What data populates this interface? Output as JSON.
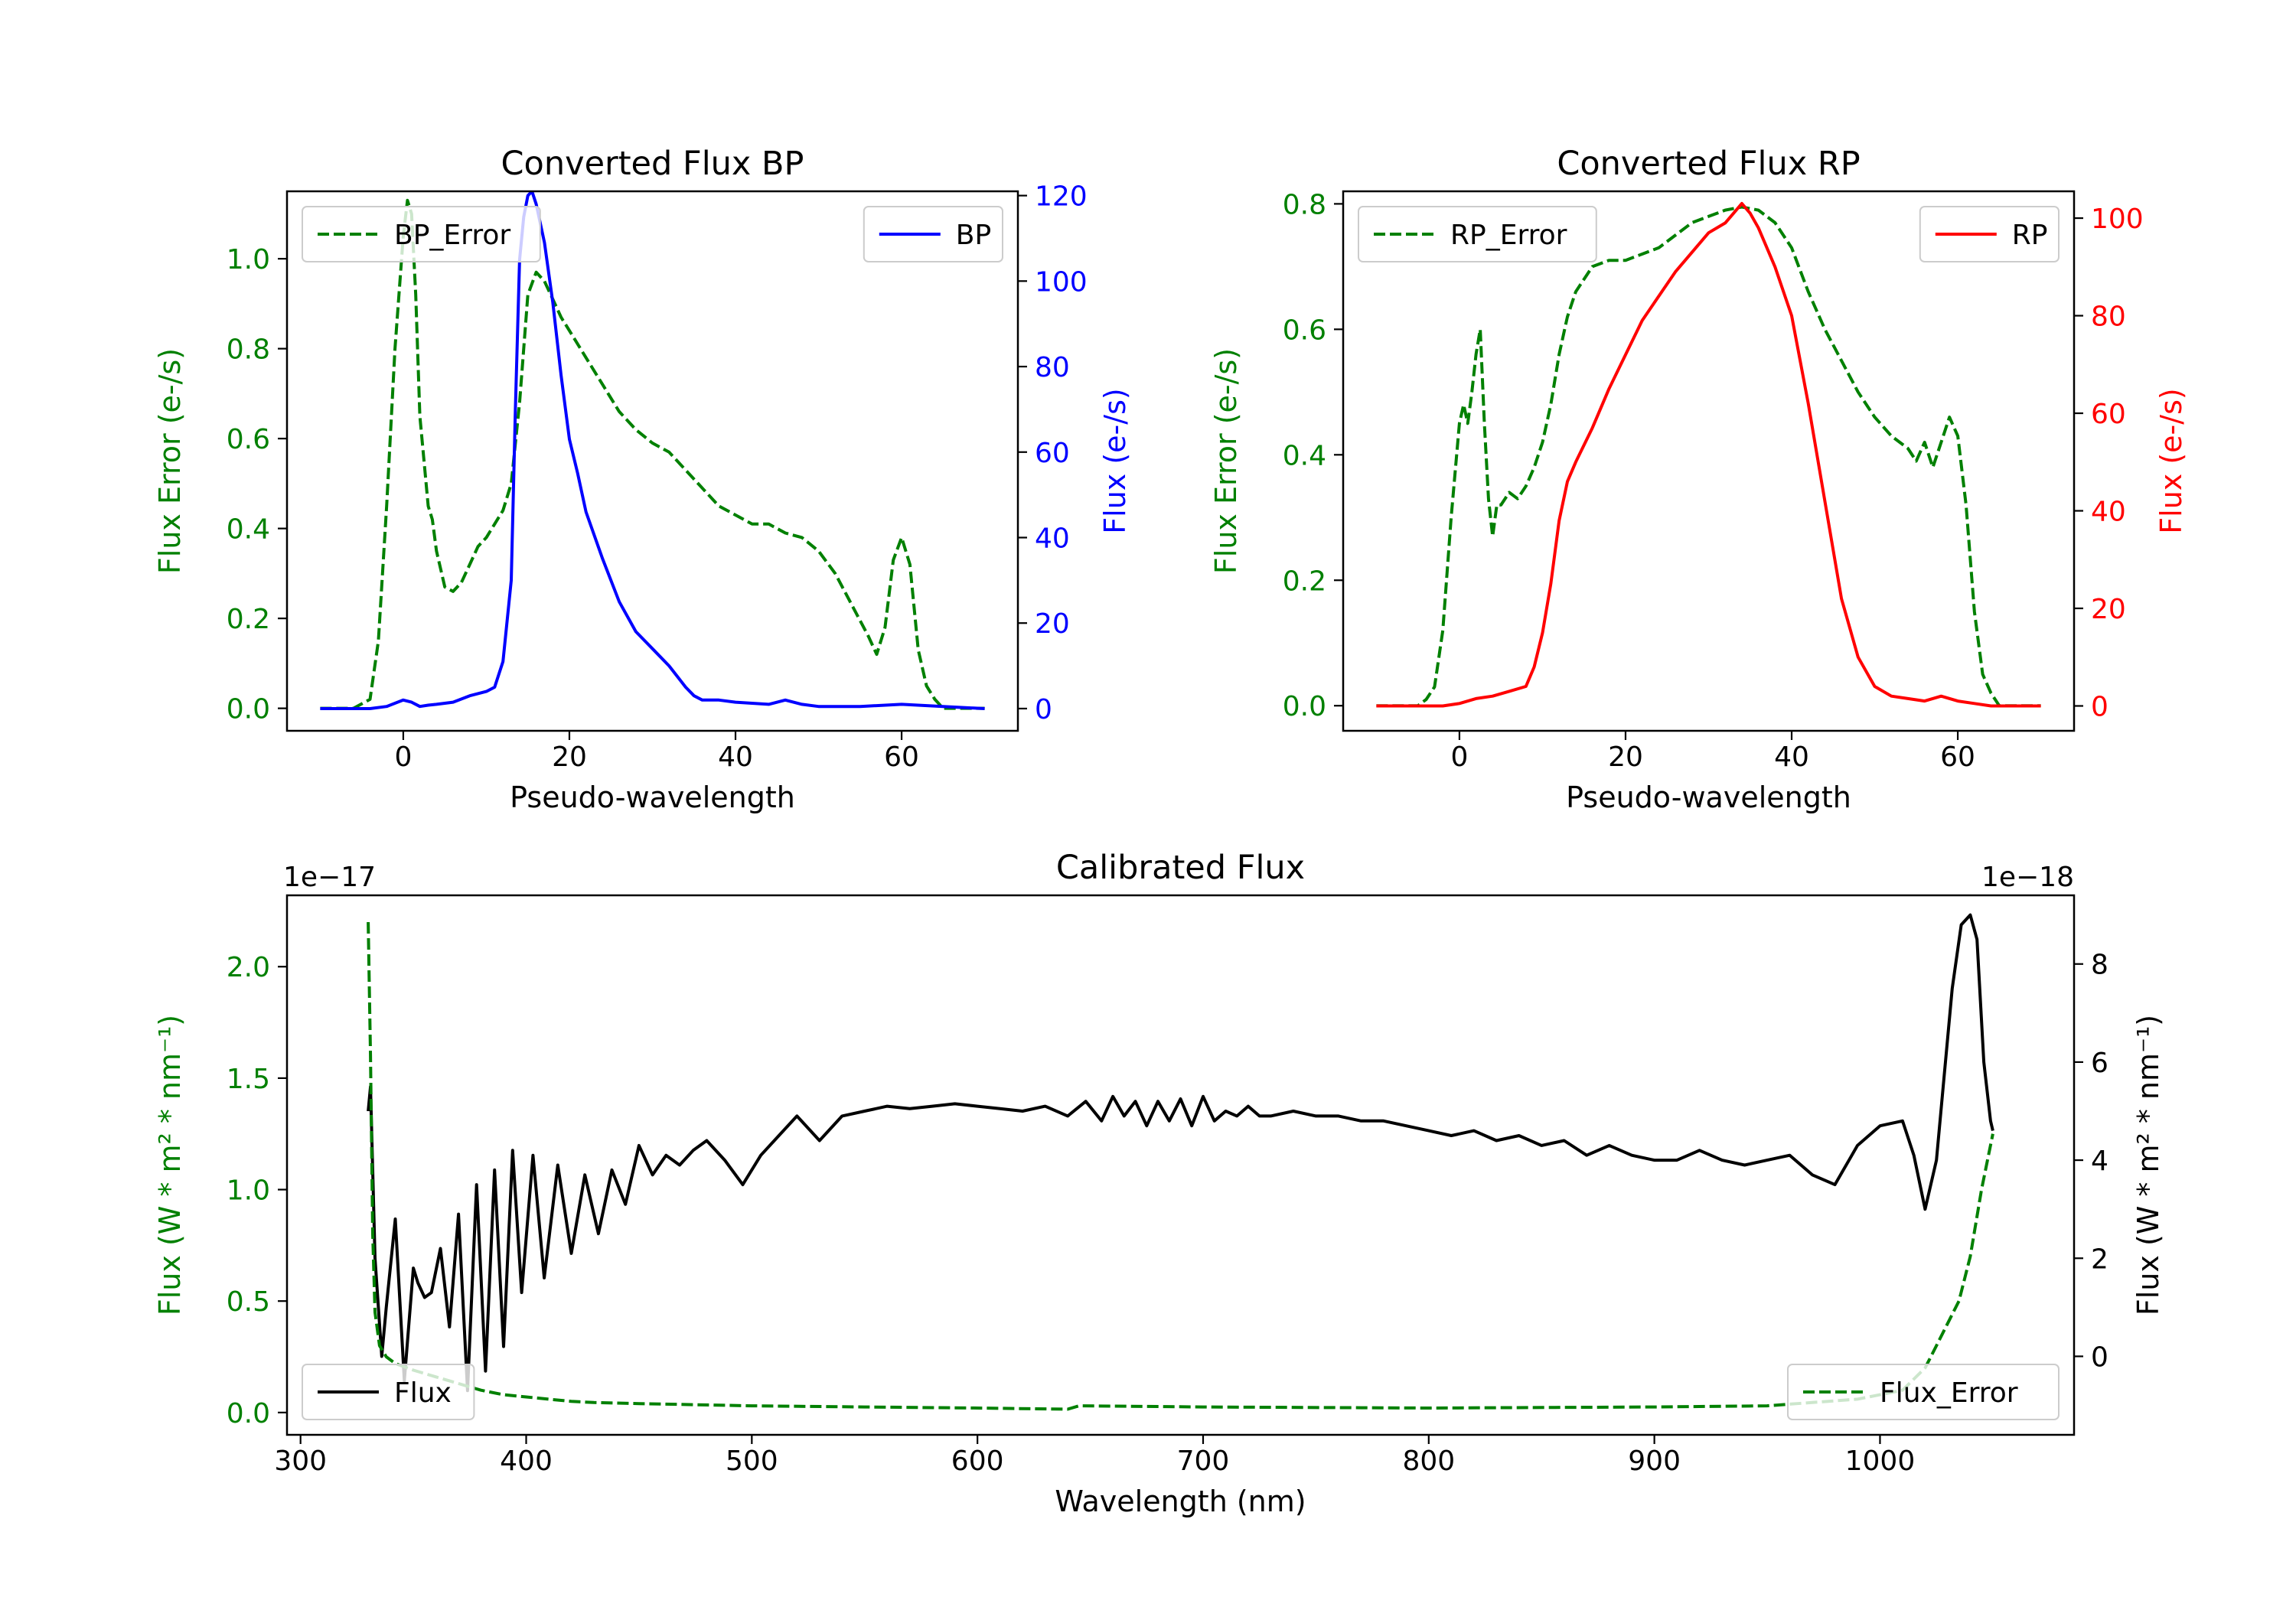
{
  "colors": {
    "error": "#008000",
    "bp": "#0000ff",
    "rp": "#ff0000",
    "flux": "#000000",
    "axis": "#000000"
  },
  "chart_data": [
    {
      "id": "bp",
      "type": "line",
      "title": "Converted Flux BP",
      "xlabel": "Pseudo-wavelength",
      "ylabel_left": "Flux Error (e-/s)",
      "ylabel_right": "Flux (e-/s)",
      "xlim": [
        -14,
        74
      ],
      "ylim_left": [
        -0.05,
        1.15
      ],
      "ylim_right": [
        -5.2,
        121
      ],
      "x_ticks": [
        0,
        20,
        40,
        60
      ],
      "x_tick_labels": [
        "0",
        "20",
        "40",
        "60"
      ],
      "y_left_ticks": [
        0.0,
        0.2,
        0.4,
        0.6,
        0.8,
        1.0
      ],
      "y_left_tick_labels": [
        "0.0",
        "0.2",
        "0.4",
        "0.6",
        "0.8",
        "1.0"
      ],
      "y_right_ticks": [
        0,
        20,
        40,
        60,
        80,
        100,
        120
      ],
      "y_right_tick_labels": [
        "0",
        "20",
        "40",
        "60",
        "80",
        "100",
        "120"
      ],
      "legend_left": {
        "label": "BP_Error",
        "position": "upper-left"
      },
      "legend_right": {
        "label": "BP",
        "position": "upper-right"
      },
      "series": [
        {
          "name": "BP_Error",
          "axis": "left",
          "style": "dashed",
          "x": [
            -10,
            -6,
            -4,
            -3,
            -2,
            -1,
            0,
            0.5,
            1,
            1.5,
            2,
            3,
            3.5,
            4,
            5,
            6,
            7,
            8,
            9,
            10,
            11,
            12,
            13,
            14,
            15,
            16,
            17,
            18,
            19,
            20,
            22,
            24,
            26,
            28,
            30,
            32,
            34,
            36,
            38,
            40,
            42,
            44,
            46,
            48,
            50,
            52,
            54,
            56,
            57,
            58,
            59,
            60,
            61,
            62,
            63,
            64,
            65,
            70
          ],
          "y": [
            0,
            0,
            0.02,
            0.15,
            0.45,
            0.8,
            1.05,
            1.13,
            1.1,
            0.92,
            0.65,
            0.45,
            0.42,
            0.35,
            0.27,
            0.26,
            0.28,
            0.32,
            0.36,
            0.38,
            0.41,
            0.44,
            0.5,
            0.68,
            0.92,
            0.97,
            0.95,
            0.91,
            0.87,
            0.84,
            0.78,
            0.72,
            0.66,
            0.62,
            0.59,
            0.57,
            0.53,
            0.49,
            0.45,
            0.43,
            0.41,
            0.41,
            0.39,
            0.38,
            0.35,
            0.3,
            0.23,
            0.16,
            0.12,
            0.18,
            0.33,
            0.38,
            0.32,
            0.13,
            0.05,
            0.02,
            0,
            0
          ]
        },
        {
          "name": "BP",
          "axis": "right",
          "style": "solid",
          "x": [
            -10,
            -4,
            -2,
            0,
            1,
            2,
            3,
            4,
            6,
            8,
            10,
            11,
            12,
            13,
            13.5,
            14,
            14.5,
            15,
            15.5,
            16,
            17,
            18,
            19,
            20,
            21,
            22,
            24,
            26,
            28,
            30,
            32,
            34,
            35,
            36,
            38,
            40,
            44,
            46,
            48,
            50,
            55,
            60,
            65,
            70
          ],
          "y": [
            0,
            0,
            0.5,
            2,
            1.5,
            0.5,
            0.8,
            1,
            1.5,
            3,
            4,
            5,
            11,
            30,
            70,
            105,
            115,
            120,
            121,
            118,
            109,
            95,
            78,
            63,
            55,
            46,
            35,
            25,
            18,
            14,
            10,
            5,
            3,
            2,
            2,
            1.5,
            1,
            2,
            1,
            0.5,
            0.5,
            1,
            0.5,
            0
          ]
        }
      ]
    },
    {
      "id": "rp",
      "type": "line",
      "title": "Converted Flux RP",
      "xlabel": "Pseudo-wavelength",
      "ylabel_left": "Flux Error (e-/s)",
      "ylabel_right": "Flux (e-/s)",
      "xlim": [
        -14,
        74
      ],
      "ylim_left": [
        -0.04,
        0.82
      ],
      "ylim_right": [
        -5.1,
        105.5
      ],
      "x_ticks": [
        0,
        20,
        40,
        60
      ],
      "x_tick_labels": [
        "0",
        "20",
        "40",
        "60"
      ],
      "y_left_ticks": [
        0.0,
        0.2,
        0.4,
        0.6,
        0.8
      ],
      "y_left_tick_labels": [
        "0.0",
        "0.2",
        "0.4",
        "0.6",
        "0.8"
      ],
      "y_right_ticks": [
        0,
        20,
        40,
        60,
        80,
        100
      ],
      "y_right_tick_labels": [
        "0",
        "20",
        "40",
        "60",
        "80",
        "100"
      ],
      "legend_left": {
        "label": "RP_Error",
        "position": "upper-left"
      },
      "legend_right": {
        "label": "RP",
        "position": "upper-right"
      },
      "series": [
        {
          "name": "RP_Error",
          "axis": "left",
          "style": "dashed",
          "x": [
            -10,
            -5,
            -4,
            -3,
            -2,
            -1,
            0,
            0.5,
            1,
            1.5,
            2,
            2.5,
            3,
            3.5,
            4,
            4.5,
            5,
            6,
            7,
            8,
            9,
            10,
            11,
            12,
            13,
            14,
            16,
            18,
            20,
            22,
            24,
            26,
            28,
            30,
            32,
            34,
            36,
            38,
            40,
            42,
            44,
            46,
            48,
            50,
            52,
            54,
            55,
            56,
            57,
            58,
            59,
            60,
            61,
            62,
            63,
            64,
            65,
            70
          ],
          "y": [
            0,
            0,
            0.01,
            0.03,
            0.12,
            0.3,
            0.45,
            0.48,
            0.45,
            0.5,
            0.56,
            0.6,
            0.45,
            0.33,
            0.27,
            0.32,
            0.32,
            0.34,
            0.33,
            0.35,
            0.38,
            0.42,
            0.48,
            0.56,
            0.62,
            0.66,
            0.7,
            0.71,
            0.71,
            0.72,
            0.73,
            0.75,
            0.77,
            0.78,
            0.79,
            0.795,
            0.79,
            0.77,
            0.73,
            0.66,
            0.6,
            0.55,
            0.5,
            0.46,
            0.43,
            0.41,
            0.39,
            0.42,
            0.38,
            0.42,
            0.46,
            0.43,
            0.32,
            0.15,
            0.05,
            0.02,
            0,
            0
          ]
        },
        {
          "name": "RP",
          "axis": "right",
          "style": "solid",
          "x": [
            -10,
            -2,
            0,
            2,
            4,
            6,
            8,
            9,
            10,
            11,
            12,
            13,
            14,
            16,
            18,
            20,
            22,
            24,
            26,
            28,
            30,
            32,
            33,
            34,
            35,
            36,
            38,
            40,
            42,
            44,
            46,
            48,
            50,
            52,
            54,
            56,
            58,
            60,
            62,
            64,
            70
          ],
          "y": [
            0,
            0,
            0.5,
            1.5,
            2,
            3,
            4,
            8,
            15,
            25,
            38,
            46,
            50,
            57,
            65,
            72,
            79,
            84,
            89,
            93,
            97,
            99,
            101,
            103,
            101,
            98,
            90,
            80,
            62,
            42,
            22,
            10,
            4,
            2,
            1.5,
            1,
            2,
            1,
            0.5,
            0,
            0
          ]
        }
      ]
    },
    {
      "id": "calibrated",
      "type": "line",
      "title": "Calibrated Flux",
      "xlabel": "Wavelength (nm)",
      "ylabel_left": "Flux (W * m² * nm⁻¹)",
      "ylabel_right": "Flux (W * m² * nm⁻¹)",
      "offset_left": "1e−17",
      "offset_right": "1e−18",
      "xlim": [
        294,
        1086
      ],
      "ylim_left": [
        -0.1,
        2.32
      ],
      "ylim_right": [
        -1.6,
        9.4
      ],
      "x_ticks": [
        300,
        400,
        500,
        600,
        700,
        800,
        900,
        1000
      ],
      "x_tick_labels": [
        "300",
        "400",
        "500",
        "600",
        "700",
        "800",
        "900",
        "1000"
      ],
      "y_left_ticks": [
        0.0,
        0.5,
        1.0,
        1.5,
        2.0
      ],
      "y_left_tick_labels": [
        "0.0",
        "0.5",
        "1.0",
        "1.5",
        "2.0"
      ],
      "y_right_ticks": [
        0,
        2,
        4,
        6,
        8
      ],
      "y_right_tick_labels": [
        "0",
        "2",
        "4",
        "6",
        "8"
      ],
      "legend_left": {
        "label": "Flux",
        "position": "lower-left"
      },
      "legend_right": {
        "label": "Flux_Error",
        "position": "lower-right"
      },
      "series": [
        {
          "name": "Flux",
          "axis": "right",
          "style": "solid",
          "x": [
            330,
            331,
            333,
            336,
            338,
            342,
            346,
            350,
            352,
            355,
            358,
            362,
            366,
            370,
            374,
            378,
            382,
            386,
            390,
            394,
            398,
            403,
            408,
            414,
            420,
            426,
            432,
            438,
            444,
            450,
            456,
            462,
            468,
            474,
            480,
            488,
            496,
            504,
            512,
            520,
            530,
            540,
            550,
            560,
            570,
            580,
            590,
            600,
            610,
            620,
            630,
            640,
            648,
            655,
            660,
            665,
            670,
            675,
            680,
            685,
            690,
            695,
            700,
            705,
            710,
            715,
            720,
            725,
            730,
            740,
            750,
            760,
            770,
            780,
            790,
            800,
            810,
            820,
            830,
            840,
            850,
            860,
            870,
            880,
            890,
            900,
            910,
            920,
            930,
            940,
            950,
            960,
            970,
            980,
            990,
            1000,
            1010,
            1015,
            1020,
            1025,
            1028,
            1032,
            1036,
            1040,
            1043,
            1046,
            1049,
            1050
          ],
          "y": [
            5,
            5.5,
            2,
            0,
            1,
            2.8,
            -0.5,
            1.8,
            1.5,
            1.2,
            1.3,
            2.2,
            0.6,
            2.9,
            -0.7,
            3.5,
            -0.3,
            3.8,
            0.2,
            4.2,
            1.3,
            4.1,
            1.6,
            3.9,
            2.1,
            3.7,
            2.5,
            3.8,
            3.1,
            4.3,
            3.7,
            4.1,
            3.9,
            4.2,
            4.4,
            4.0,
            3.5,
            4.1,
            4.5,
            4.9,
            4.4,
            4.9,
            5.0,
            5.1,
            5.05,
            5.1,
            5.15,
            5.1,
            5.05,
            5.0,
            5.1,
            4.9,
            5.2,
            4.8,
            5.3,
            4.9,
            5.2,
            4.7,
            5.2,
            4.8,
            5.25,
            4.7,
            5.3,
            4.8,
            5.0,
            4.9,
            5.1,
            4.9,
            4.9,
            5.0,
            4.9,
            4.9,
            4.8,
            4.8,
            4.7,
            4.6,
            4.5,
            4.6,
            4.4,
            4.5,
            4.3,
            4.4,
            4.1,
            4.3,
            4.1,
            4.0,
            4.0,
            4.2,
            4.0,
            3.9,
            4.0,
            4.1,
            3.7,
            3.5,
            4.3,
            4.7,
            4.8,
            4.1,
            3.0,
            4.0,
            5.5,
            7.5,
            8.8,
            9.0,
            8.5,
            6.0,
            4.8,
            4.6
          ]
        },
        {
          "name": "Flux_Error",
          "axis": "left",
          "style": "dashed",
          "x": [
            330,
            331,
            332,
            333,
            335,
            338,
            342,
            350,
            360,
            370,
            380,
            390,
            400,
            410,
            420,
            430,
            450,
            500,
            550,
            600,
            640,
            645,
            700,
            800,
            900,
            950,
            990,
            1000,
            1010,
            1020,
            1025,
            1030,
            1035,
            1040,
            1045,
            1050
          ],
          "y": [
            2.2,
            1.6,
            0.8,
            0.45,
            0.3,
            0.25,
            0.22,
            0.19,
            0.16,
            0.13,
            0.1,
            0.08,
            0.07,
            0.06,
            0.05,
            0.045,
            0.04,
            0.03,
            0.025,
            0.02,
            0.015,
            0.03,
            0.025,
            0.02,
            0.025,
            0.03,
            0.06,
            0.08,
            0.1,
            0.2,
            0.3,
            0.4,
            0.5,
            0.7,
            1.0,
            1.25
          ]
        }
      ]
    }
  ]
}
